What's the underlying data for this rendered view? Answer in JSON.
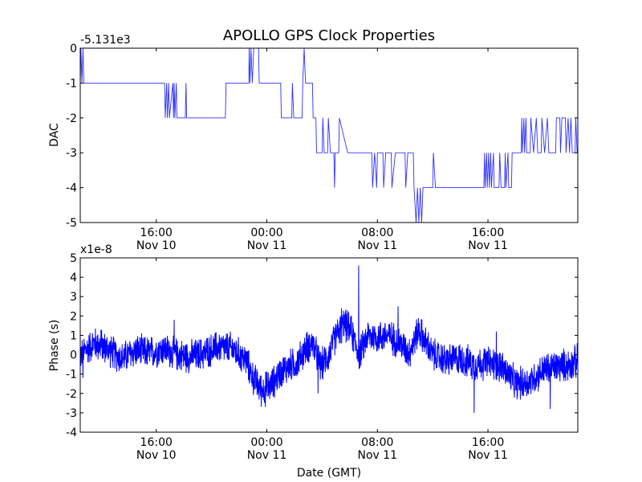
{
  "chart_data": [
    {
      "type": "line",
      "title": "APOLLO GPS Clock Properties",
      "ylabel": "DAC",
      "xlabel": "",
      "offset_label": "-5.131e3",
      "ylim": [
        -5,
        0
      ],
      "yticks": [
        0,
        -1,
        -2,
        -3,
        -4,
        -5
      ],
      "ytick_labels": [
        "0",
        "-1",
        "-2",
        "-3",
        "-4",
        "-5"
      ],
      "xlim_hours": [
        10.5,
        46.5
      ],
      "xticks": [
        {
          "hour": 16,
          "time": "16:00",
          "date": "Nov 10"
        },
        {
          "hour": 24,
          "time": "00:00",
          "date": "Nov 11"
        },
        {
          "hour": 32,
          "time": "08:00",
          "date": "Nov 11"
        },
        {
          "hour": 40,
          "time": "16:00",
          "date": "Nov 11"
        }
      ],
      "color": "#3030ff",
      "series": [
        {
          "name": "DAC",
          "points": [
            [
              10.5,
              -1
            ],
            [
              10.55,
              0
            ],
            [
              10.62,
              -1
            ],
            [
              10.7,
              0
            ],
            [
              10.76,
              -1
            ],
            [
              16.6,
              -1
            ],
            [
              16.65,
              -2
            ],
            [
              16.75,
              -1
            ],
            [
              16.8,
              -2
            ],
            [
              16.9,
              -1
            ],
            [
              16.95,
              -2
            ],
            [
              17.2,
              -1
            ],
            [
              17.25,
              -2
            ],
            [
              17.3,
              -1
            ],
            [
              17.35,
              -2
            ],
            [
              17.45,
              -1
            ],
            [
              17.5,
              -2
            ],
            [
              18.1,
              -2
            ],
            [
              18.15,
              -1
            ],
            [
              18.2,
              -2
            ],
            [
              21.0,
              -2
            ],
            [
              21.05,
              -1
            ],
            [
              22.7,
              -1
            ],
            [
              22.72,
              0
            ],
            [
              22.78,
              -1
            ],
            [
              22.85,
              0
            ],
            [
              22.95,
              -1
            ],
            [
              23.05,
              0
            ],
            [
              23.4,
              0
            ],
            [
              23.45,
              -1
            ],
            [
              25.0,
              -1
            ],
            [
              25.05,
              -2
            ],
            [
              25.8,
              -2
            ],
            [
              25.85,
              -1
            ],
            [
              25.95,
              -2
            ],
            [
              26.55,
              -2
            ],
            [
              26.6,
              -1
            ],
            [
              26.7,
              0
            ],
            [
              26.8,
              -1
            ],
            [
              27.3,
              -1
            ],
            [
              27.35,
              -2
            ],
            [
              27.55,
              -2
            ],
            [
              27.6,
              -3
            ],
            [
              28.0,
              -3
            ],
            [
              28.05,
              -2
            ],
            [
              28.15,
              -3
            ],
            [
              28.4,
              -3
            ],
            [
              28.45,
              -2
            ],
            [
              28.6,
              -3
            ],
            [
              28.85,
              -3
            ],
            [
              28.9,
              -4
            ],
            [
              28.95,
              -3
            ],
            [
              29.2,
              -3
            ],
            [
              29.25,
              -2
            ],
            [
              29.85,
              -3
            ],
            [
              31.6,
              -3
            ],
            [
              31.65,
              -4
            ],
            [
              31.8,
              -3
            ],
            [
              31.95,
              -4
            ],
            [
              32.0,
              -3
            ],
            [
              32.4,
              -3
            ],
            [
              32.45,
              -4
            ],
            [
              32.6,
              -3
            ],
            [
              33.0,
              -3
            ],
            [
              33.05,
              -4
            ],
            [
              33.3,
              -3
            ],
            [
              34.0,
              -3
            ],
            [
              34.05,
              -4
            ],
            [
              34.2,
              -3
            ],
            [
              34.6,
              -3
            ],
            [
              34.65,
              -4
            ],
            [
              34.8,
              -5
            ],
            [
              34.9,
              -4
            ],
            [
              35.0,
              -5
            ],
            [
              35.1,
              -4
            ],
            [
              35.2,
              -5
            ],
            [
              35.3,
              -4
            ],
            [
              36.0,
              -4
            ],
            [
              36.05,
              -3
            ],
            [
              36.2,
              -4
            ],
            [
              39.7,
              -4
            ],
            [
              39.75,
              -3
            ],
            [
              39.8,
              -4
            ],
            [
              39.9,
              -3
            ],
            [
              39.95,
              -4
            ],
            [
              40.05,
              -3
            ],
            [
              40.1,
              -4
            ],
            [
              40.2,
              -3
            ],
            [
              40.25,
              -4
            ],
            [
              40.4,
              -3
            ],
            [
              40.45,
              -4
            ],
            [
              40.8,
              -4
            ],
            [
              40.85,
              -3
            ],
            [
              40.95,
              -4
            ],
            [
              41.2,
              -4
            ],
            [
              41.25,
              -3
            ],
            [
              41.3,
              -4
            ],
            [
              41.45,
              -3
            ],
            [
              41.5,
              -4
            ],
            [
              41.7,
              -4
            ],
            [
              41.75,
              -3
            ],
            [
              42.4,
              -3
            ],
            [
              42.45,
              -2
            ],
            [
              42.5,
              -3
            ],
            [
              42.6,
              -2
            ],
            [
              42.65,
              -3
            ],
            [
              42.75,
              -2
            ],
            [
              42.8,
              -3
            ],
            [
              43.05,
              -3
            ],
            [
              43.1,
              -2
            ],
            [
              43.3,
              -3
            ],
            [
              43.5,
              -2
            ],
            [
              43.6,
              -3
            ],
            [
              43.85,
              -3
            ],
            [
              43.9,
              -2
            ],
            [
              44.1,
              -3
            ],
            [
              44.3,
              -2
            ],
            [
              44.4,
              -3
            ],
            [
              44.9,
              -3
            ],
            [
              44.95,
              -2
            ],
            [
              45.2,
              -2
            ],
            [
              45.25,
              -3
            ],
            [
              45.35,
              -2
            ],
            [
              45.6,
              -2
            ],
            [
              45.65,
              -3
            ],
            [
              45.8,
              -2
            ],
            [
              45.9,
              -3
            ],
            [
              46.0,
              -2
            ],
            [
              46.1,
              -3
            ],
            [
              46.3,
              -3
            ],
            [
              46.35,
              -2
            ],
            [
              46.45,
              -3
            ],
            [
              46.5,
              -3
            ]
          ]
        }
      ]
    },
    {
      "type": "line",
      "title": "",
      "ylabel": "Phase (s)",
      "xlabel": "Date (GMT)",
      "offset_label": "x1e-8",
      "ylim": [
        -4,
        5
      ],
      "yticks": [
        5,
        4,
        3,
        2,
        1,
        0,
        -1,
        -2,
        -3,
        -4
      ],
      "ytick_labels": [
        "5",
        "4",
        "3",
        "2",
        "1",
        "0",
        "-1",
        "-2",
        "-3",
        "-4"
      ],
      "xlim_hours": [
        10.5,
        46.5
      ],
      "xticks": [
        {
          "hour": 16,
          "time": "16:00",
          "date": "Nov 10"
        },
        {
          "hour": 24,
          "time": "00:00",
          "date": "Nov 11"
        },
        {
          "hour": 32,
          "time": "08:00",
          "date": "Nov 11"
        },
        {
          "hour": 40,
          "time": "16:00",
          "date": "Nov 11"
        }
      ],
      "color": "#0000ff",
      "noise_amplitude": 0.9,
      "noise_samples": 2400,
      "spikes": [
        {
          "hour": 30.65,
          "value": 4.6
        },
        {
          "hour": 29.4,
          "value": 2.4
        },
        {
          "hour": 33.5,
          "value": 2.5
        },
        {
          "hour": 17.3,
          "value": 1.8
        },
        {
          "hour": 23.9,
          "value": -2.7
        },
        {
          "hour": 39.0,
          "value": -3.0
        },
        {
          "hour": 44.5,
          "value": -2.8
        },
        {
          "hour": 27.7,
          "value": -2.0
        },
        {
          "hour": 12.0,
          "value": 1.3
        },
        {
          "hour": 10.7,
          "value": -1.2
        },
        {
          "hour": 40.6,
          "value": 1.2
        },
        {
          "hour": 46.3,
          "value": 0.4
        }
      ],
      "series": [
        {
          "name": "Phase",
          "trend": [
            [
              10.5,
              0.0
            ],
            [
              11.5,
              0.6
            ],
            [
              12.5,
              0.3
            ],
            [
              13.5,
              -0.2
            ],
            [
              14.5,
              0.2
            ],
            [
              15.5,
              0.1
            ],
            [
              16.5,
              0.3
            ],
            [
              17.5,
              0.0
            ],
            [
              18.5,
              -0.1
            ],
            [
              19.5,
              0.1
            ],
            [
              20.5,
              0.4
            ],
            [
              21.5,
              0.3
            ],
            [
              22.5,
              -0.3
            ],
            [
              23.0,
              -1.2
            ],
            [
              23.6,
              -1.8
            ],
            [
              24.3,
              -1.6
            ],
            [
              25.0,
              -0.9
            ],
            [
              25.6,
              -0.6
            ],
            [
              26.2,
              -0.4
            ],
            [
              26.8,
              0.3
            ],
            [
              27.3,
              0.6
            ],
            [
              27.9,
              -0.6
            ],
            [
              28.5,
              0.0
            ],
            [
              29.0,
              1.0
            ],
            [
              29.6,
              1.6
            ],
            [
              30.1,
              1.2
            ],
            [
              30.7,
              0.0
            ],
            [
              31.3,
              1.0
            ],
            [
              32.0,
              0.9
            ],
            [
              32.8,
              1.0
            ],
            [
              33.6,
              0.6
            ],
            [
              34.3,
              0.1
            ],
            [
              35.0,
              1.3
            ],
            [
              35.5,
              0.6
            ],
            [
              36.0,
              0.0
            ],
            [
              37.0,
              -0.3
            ],
            [
              38.0,
              -0.2
            ],
            [
              39.0,
              -0.5
            ],
            [
              40.0,
              -0.4
            ],
            [
              41.0,
              -0.6
            ],
            [
              42.0,
              -1.5
            ],
            [
              43.0,
              -1.4
            ],
            [
              44.0,
              -0.8
            ],
            [
              45.0,
              -0.6
            ],
            [
              46.0,
              -0.5
            ],
            [
              46.5,
              -0.3
            ]
          ]
        }
      ]
    }
  ]
}
